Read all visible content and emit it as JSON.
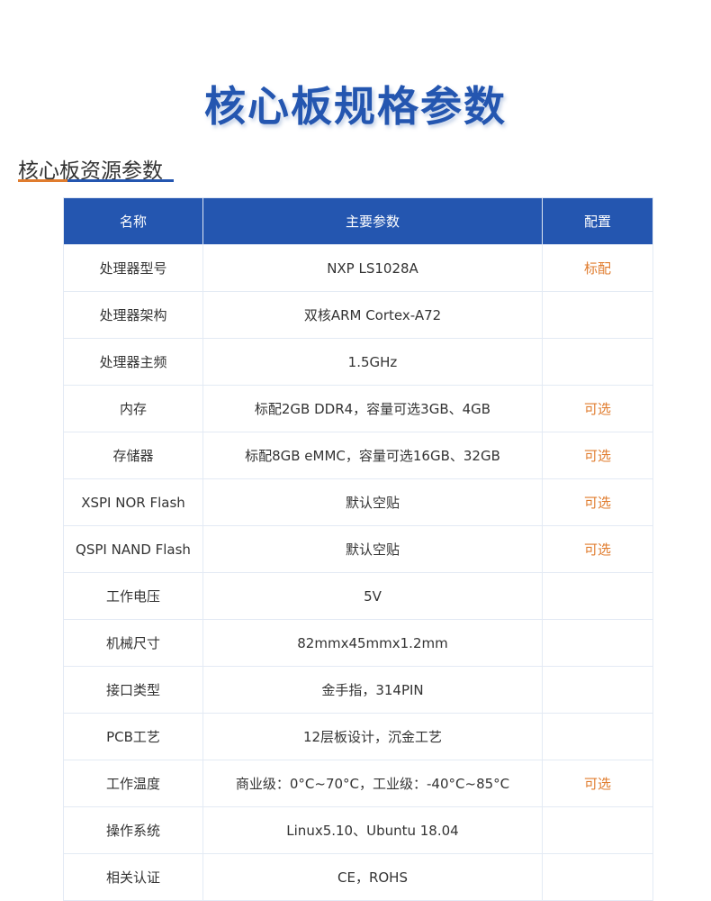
{
  "title": "核心板规格参数",
  "section": "核心板资源参数",
  "colors": {
    "accent": "#2456b0",
    "highlight": "#e07c2e"
  },
  "headers": [
    "名称",
    "主要参数",
    "配置"
  ],
  "rows": [
    [
      "处理器型号",
      "NXP LS1028A",
      "标配"
    ],
    [
      "处理器架构",
      "双核ARM Cortex-A72",
      ""
    ],
    [
      "处理器主频",
      "1.5GHz",
      ""
    ],
    [
      "内存",
      "标配2GB DDR4，容量可选3GB、4GB",
      "可选"
    ],
    [
      "存储器",
      "标配8GB eMMC，容量可选16GB、32GB",
      "可选"
    ],
    [
      "XSPI NOR Flash",
      "默认空贴",
      "可选"
    ],
    [
      "QSPI NAND Flash",
      "默认空贴",
      "可选"
    ],
    [
      "工作电压",
      "5V",
      ""
    ],
    [
      "机械尺寸",
      "82mmx45mmx1.2mm",
      ""
    ],
    [
      "接口类型",
      "金手指，314PIN",
      ""
    ],
    [
      "PCB工艺",
      "12层板设计，沉金工艺",
      ""
    ],
    [
      "工作温度",
      "商业级：0°C~70°C，工业级：-40°C~85°C",
      "可选"
    ],
    [
      "操作系统",
      "Linux5.10、Ubuntu 18.04",
      ""
    ],
    [
      "相关认证",
      "CE，ROHS",
      ""
    ]
  ]
}
